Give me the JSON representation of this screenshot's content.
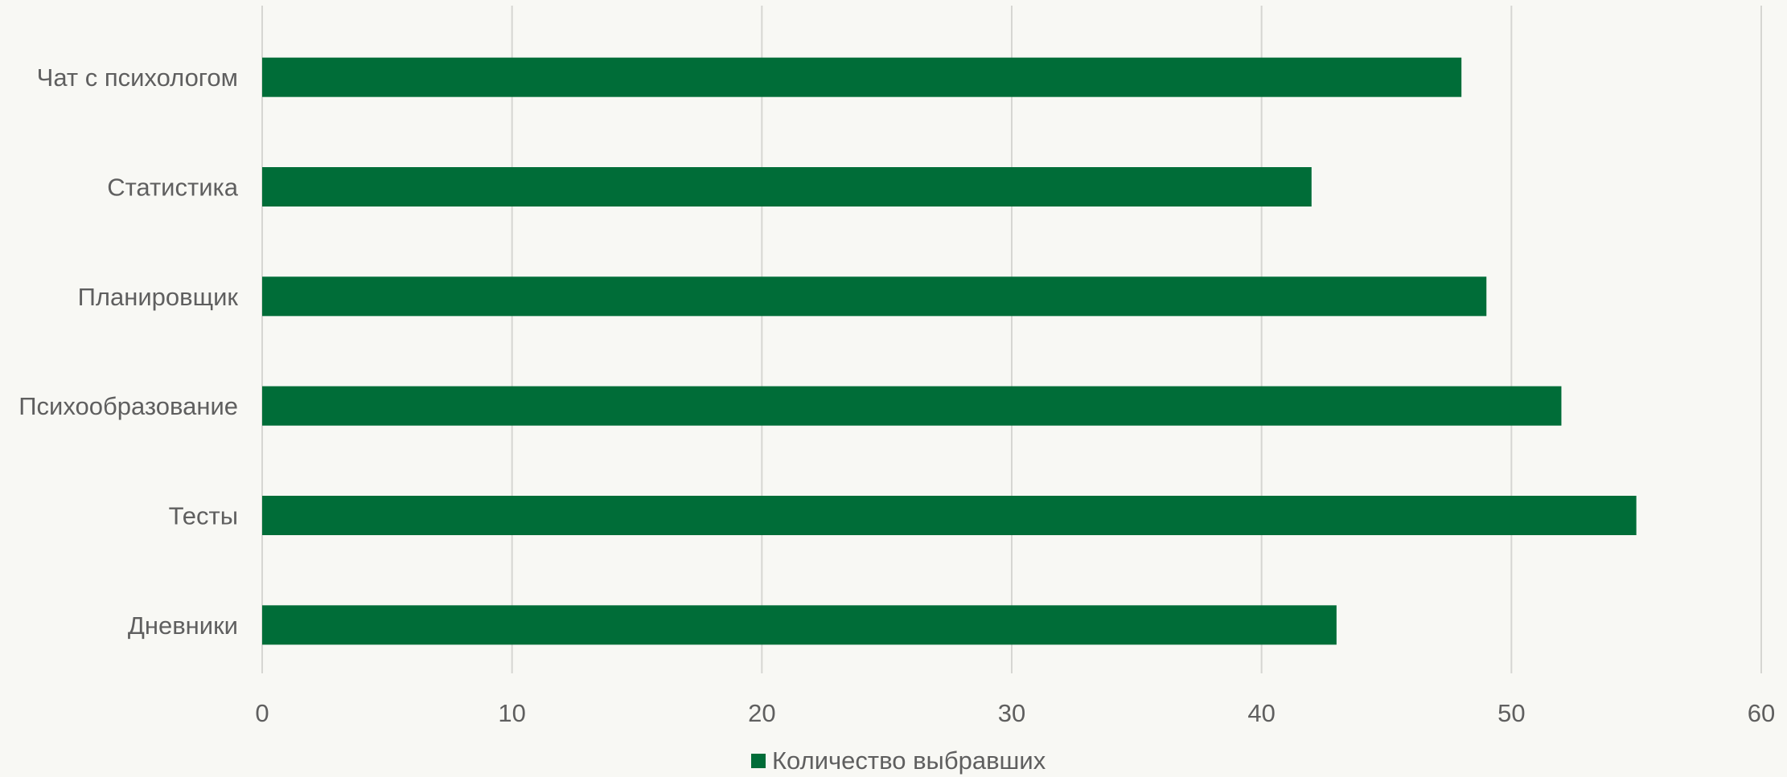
{
  "chart_data": {
    "type": "bar",
    "orientation": "horizontal",
    "categories": [
      "Чат с психологом",
      "Статистика",
      "Планировщик",
      "Психообразование",
      "Тесты",
      "Дневники"
    ],
    "series": [
      {
        "name": "Количество выбравших",
        "values": [
          48,
          42,
          49,
          52,
          55,
          43
        ]
      }
    ],
    "xlim": [
      0,
      60
    ],
    "x_ticks": [
      0,
      10,
      20,
      30,
      40,
      50,
      60
    ],
    "grid": true,
    "legend_position": "bottom",
    "colors": {
      "bar": "#006d38",
      "grid": "#d6d6d2",
      "text": "#5f5f5f",
      "background": "#f8f8f4"
    }
  }
}
